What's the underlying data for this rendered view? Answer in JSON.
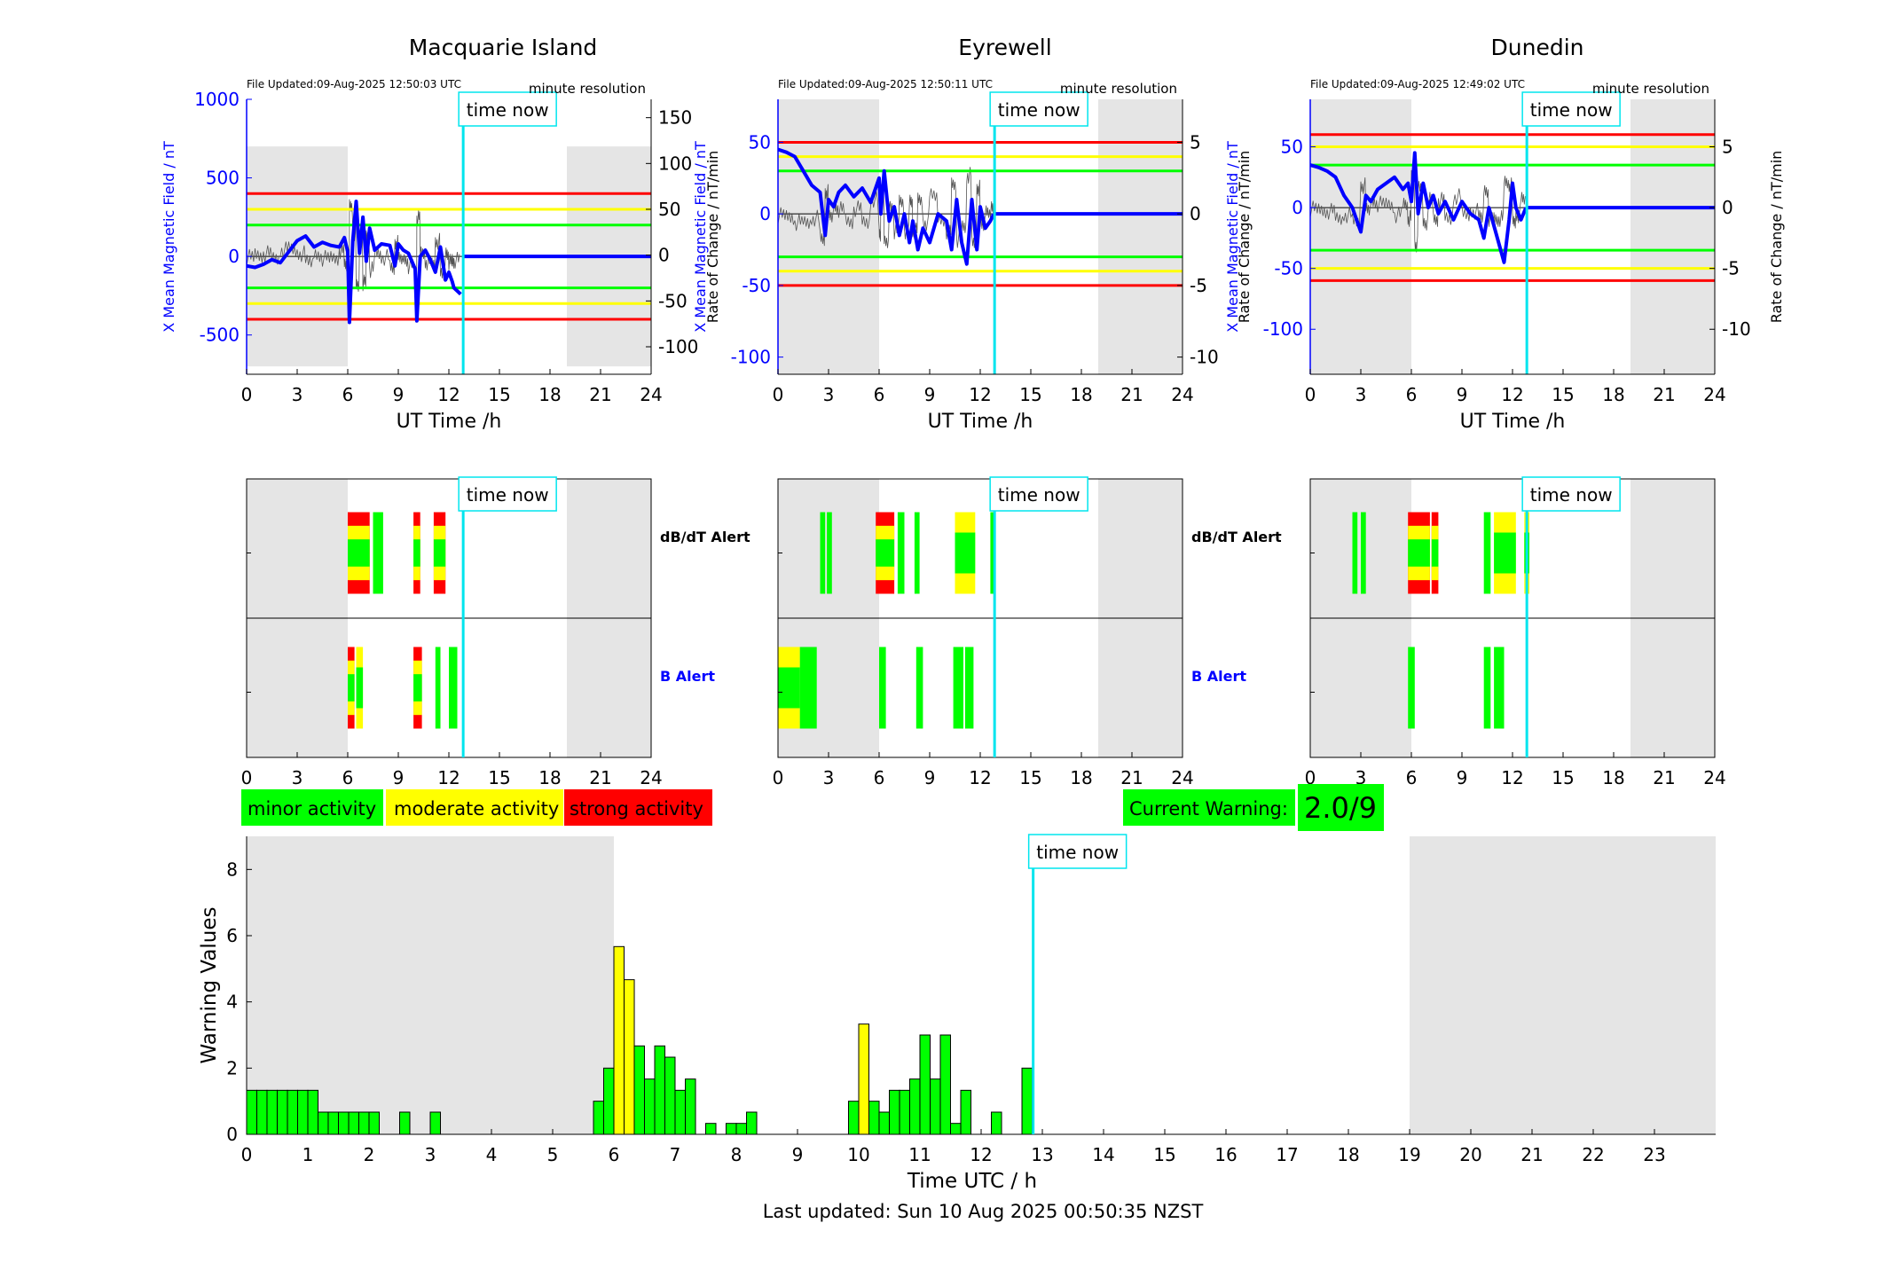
{
  "stations": [
    {
      "name": "Macquarie Island",
      "file_updated": "File Updated:09-Aug-2025 12:50:03 UTC",
      "resolution": "minute resolution",
      "left_ylabel": "X Mean Magnetic Field / nT",
      "right_ylabel": "Rate of Change / nT/min",
      "left_ylim": [
        -750,
        1000
      ],
      "right_ylim": [
        -130,
        170
      ],
      "left_ticks": [
        "-500",
        "0",
        "500",
        "1000"
      ],
      "left_tick_values": [
        -500,
        0,
        500,
        1000
      ],
      "right_ticks": [
        "-100",
        "-50",
        "0",
        "50",
        "100",
        "150"
      ],
      "right_tick_values": [
        -100,
        -50,
        0,
        50,
        100,
        150
      ],
      "thresholds": {
        "green": 200,
        "yellow": 300,
        "red": 400
      },
      "shade_band": [
        -700,
        700
      ],
      "field_series": [
        [
          0,
          -60
        ],
        [
          0.5,
          -70
        ],
        [
          1,
          -50
        ],
        [
          1.5,
          -20
        ],
        [
          2,
          -40
        ],
        [
          2.5,
          30
        ],
        [
          3,
          100
        ],
        [
          3.5,
          130
        ],
        [
          4,
          60
        ],
        [
          4.5,
          90
        ],
        [
          5,
          70
        ],
        [
          5.5,
          60
        ],
        [
          5.8,
          120
        ],
        [
          6,
          30
        ],
        [
          6.1,
          -420
        ],
        [
          6.3,
          100
        ],
        [
          6.5,
          350
        ],
        [
          6.7,
          20
        ],
        [
          6.9,
          250
        ],
        [
          7.1,
          -30
        ],
        [
          7.3,
          180
        ],
        [
          7.6,
          40
        ],
        [
          8,
          80
        ],
        [
          8.5,
          70
        ],
        [
          8.8,
          -60
        ],
        [
          9,
          80
        ],
        [
          9.3,
          40
        ],
        [
          9.6,
          20
        ],
        [
          10,
          -80
        ],
        [
          10.1,
          -410
        ],
        [
          10.3,
          0
        ],
        [
          10.6,
          40
        ],
        [
          10.9,
          -20
        ],
        [
          11.2,
          -100
        ],
        [
          11.5,
          60
        ],
        [
          11.8,
          -150
        ],
        [
          12,
          -100
        ],
        [
          12.2,
          -160
        ],
        [
          12.3,
          -200
        ],
        [
          12.7,
          -240
        ]
      ],
      "flat_from": 12.9,
      "alert_db": [
        {
          "t": 6,
          "w": 1.3,
          "s": 3
        },
        {
          "t": 7.5,
          "w": 0.6,
          "s": 1
        },
        {
          "t": 9.9,
          "w": 0.4,
          "s": 3
        },
        {
          "t": 11.1,
          "w": 0.7,
          "s": 3
        }
      ],
      "alert_b": [
        {
          "t": 6,
          "w": 0.4,
          "s": 3
        },
        {
          "t": 6.5,
          "w": 0.4,
          "s": 2
        },
        {
          "t": 9.9,
          "w": 0.5,
          "s": 3
        },
        {
          "t": 11.2,
          "w": 0.3,
          "s": 1
        },
        {
          "t": 12,
          "w": 0.5,
          "s": 1
        }
      ]
    },
    {
      "name": "Eyrewell",
      "file_updated": "File Updated:09-Aug-2025 12:50:11 UTC",
      "resolution": "minute resolution",
      "left_ylabel": "X Mean Magnetic Field / nT",
      "right_ylabel": "Rate of Change / nT/min",
      "left_ylim": [
        -112,
        80
      ],
      "right_ylim": [
        -11.2,
        8
      ],
      "left_ticks": [
        "-100",
        "-50",
        "0",
        "50"
      ],
      "left_tick_values": [
        -100,
        -50,
        0,
        50
      ],
      "right_ticks": [
        "-10",
        "-5",
        "0",
        "5"
      ],
      "right_tick_values": [
        -10,
        -5,
        0,
        5
      ],
      "thresholds": {
        "green": 30,
        "yellow": 40,
        "red": 50
      },
      "shade_band": [
        -112,
        80
      ],
      "field_series": [
        [
          0,
          45
        ],
        [
          0.5,
          43
        ],
        [
          1,
          40
        ],
        [
          1.5,
          30
        ],
        [
          2,
          20
        ],
        [
          2.5,
          15
        ],
        [
          2.8,
          -15
        ],
        [
          3,
          10
        ],
        [
          3.3,
          5
        ],
        [
          3.6,
          15
        ],
        [
          4,
          20
        ],
        [
          4.5,
          12
        ],
        [
          5,
          18
        ],
        [
          5.5,
          8
        ],
        [
          6,
          25
        ],
        [
          6.1,
          0
        ],
        [
          6.3,
          30
        ],
        [
          6.6,
          -5
        ],
        [
          6.9,
          5
        ],
        [
          7.2,
          -15
        ],
        [
          7.5,
          0
        ],
        [
          7.8,
          -20
        ],
        [
          8,
          -5
        ],
        [
          8.3,
          -25
        ],
        [
          8.6,
          -10
        ],
        [
          9,
          -20
        ],
        [
          9.5,
          0
        ],
        [
          10,
          -5
        ],
        [
          10.3,
          -25
        ],
        [
          10.6,
          10
        ],
        [
          10.9,
          -20
        ],
        [
          11.2,
          -35
        ],
        [
          11.5,
          10
        ],
        [
          11.8,
          -25
        ],
        [
          12,
          5
        ],
        [
          12.3,
          -10
        ],
        [
          12.6,
          -5
        ],
        [
          12.8,
          0
        ]
      ],
      "flat_from": 12.9,
      "alert_db": [
        {
          "t": 2.5,
          "w": 0.3,
          "s": 1
        },
        {
          "t": 2.9,
          "w": 0.3,
          "s": 1
        },
        {
          "t": 5.8,
          "w": 1.1,
          "s": 3
        },
        {
          "t": 7.1,
          "w": 0.4,
          "s": 1
        },
        {
          "t": 8.1,
          "w": 0.3,
          "s": 1
        },
        {
          "t": 10.5,
          "w": 1.2,
          "s": 2
        },
        {
          "t": 12.6,
          "w": 0.3,
          "s": 1
        }
      ],
      "alert_b": [
        {
          "t": 0,
          "w": 1.3,
          "s": 2
        },
        {
          "t": 1.3,
          "w": 1,
          "s": 1
        },
        {
          "t": 6,
          "w": 0.4,
          "s": 1
        },
        {
          "t": 8.2,
          "w": 0.4,
          "s": 1
        },
        {
          "t": 10.4,
          "w": 0.6,
          "s": 1
        },
        {
          "t": 11.1,
          "w": 0.5,
          "s": 1
        }
      ]
    },
    {
      "name": "Dunedin",
      "file_updated": "File Updated:09-Aug-2025 12:49:02 UTC",
      "resolution": "minute resolution",
      "left_ylabel": "X Mean Magnetic Field / nT",
      "right_ylabel": "Rate of Change / nT/min",
      "left_ylim": [
        -137,
        89
      ],
      "right_ylim": [
        -13.7,
        8.9
      ],
      "left_ticks": [
        "-100",
        "-50",
        "0",
        "50"
      ],
      "left_tick_values": [
        -100,
        -50,
        0,
        50
      ],
      "right_ticks": [
        "-10",
        "-5",
        "0",
        "5"
      ],
      "right_tick_values": [
        -10,
        -5,
        0,
        5
      ],
      "thresholds": {
        "green": 35,
        "yellow": 50,
        "red": 60
      },
      "shade_band": [
        -137,
        89
      ],
      "field_series": [
        [
          0,
          35
        ],
        [
          0.5,
          33
        ],
        [
          1,
          30
        ],
        [
          1.5,
          25
        ],
        [
          2,
          10
        ],
        [
          2.5,
          0
        ],
        [
          3,
          -20
        ],
        [
          3.3,
          10
        ],
        [
          3.6,
          5
        ],
        [
          4,
          15
        ],
        [
          4.5,
          20
        ],
        [
          5,
          25
        ],
        [
          5.5,
          15
        ],
        [
          5.8,
          20
        ],
        [
          6,
          5
        ],
        [
          6.2,
          45
        ],
        [
          6.4,
          -5
        ],
        [
          6.7,
          20
        ],
        [
          7,
          0
        ],
        [
          7.3,
          10
        ],
        [
          7.6,
          -5
        ],
        [
          8,
          5
        ],
        [
          8.5,
          -10
        ],
        [
          9,
          5
        ],
        [
          9.5,
          -5
        ],
        [
          10,
          -10
        ],
        [
          10.3,
          -25
        ],
        [
          10.6,
          0
        ],
        [
          10.9,
          -15
        ],
        [
          11.2,
          -30
        ],
        [
          11.5,
          -45
        ],
        [
          11.8,
          -10
        ],
        [
          12,
          20
        ],
        [
          12.2,
          0
        ],
        [
          12.5,
          -10
        ],
        [
          12.8,
          0
        ]
      ],
      "flat_from": 12.9,
      "alert_db": [
        {
          "t": 2.5,
          "w": 0.3,
          "s": 1
        },
        {
          "t": 3,
          "w": 0.3,
          "s": 1
        },
        {
          "t": 5.8,
          "w": 1.3,
          "s": 3
        },
        {
          "t": 7.2,
          "w": 0.4,
          "s": 3
        },
        {
          "t": 10.3,
          "w": 0.4,
          "s": 1
        },
        {
          "t": 10.9,
          "w": 1.3,
          "s": 2
        },
        {
          "t": 12.7,
          "w": 0.3,
          "s": 2
        }
      ],
      "alert_b": [
        {
          "t": 5.8,
          "w": 0.4,
          "s": 1
        },
        {
          "t": 10.3,
          "w": 0.4,
          "s": 1
        },
        {
          "t": 10.9,
          "w": 0.6,
          "s": 1
        }
      ]
    }
  ],
  "time_now_label": "time now",
  "time_now_hours": 12.85,
  "shade_night": [
    [
      0,
      6
    ],
    [
      19,
      24
    ]
  ],
  "shade_night_bottom": [
    [
      0,
      6
    ],
    [
      19,
      24
    ]
  ],
  "ut_xlabel": "UT Time /h",
  "ut_ticks": [
    "0",
    "3",
    "6",
    "9",
    "12",
    "15",
    "18",
    "21",
    "24"
  ],
  "alert_labels": {
    "db": "dB/dT Alert",
    "b": "B Alert"
  },
  "legend": {
    "minor": "minor activity",
    "moderate": "moderate activity",
    "strong": "strong activity"
  },
  "current_warning": {
    "label": "Current Warning:",
    "value": "2.0/9"
  },
  "colors": {
    "minor": "#00ff00",
    "moderate": "#ffff00",
    "strong": "#ff0000",
    "now": "#00e5ee",
    "field": "#0000ff",
    "shade": "#e5e5e5"
  },
  "chart_data": {
    "type": "bar",
    "ylabel": "Warning Values",
    "xlabel": "Time UTC / h",
    "ylim": [
      0,
      9
    ],
    "xlim": [
      0,
      24
    ],
    "yticks": [
      "0",
      "2",
      "4",
      "6",
      "8"
    ],
    "xticks": [
      "0",
      "1",
      "2",
      "3",
      "4",
      "5",
      "6",
      "7",
      "8",
      "9",
      "10",
      "11",
      "12",
      "13",
      "14",
      "15",
      "16",
      "17",
      "18",
      "19",
      "20",
      "21",
      "22",
      "23"
    ],
    "bar_width_h": 0.1667,
    "bars": [
      {
        "x": 0.0,
        "v": 1.33,
        "c": "minor"
      },
      {
        "x": 0.167,
        "v": 1.33,
        "c": "minor"
      },
      {
        "x": 0.333,
        "v": 1.33,
        "c": "minor"
      },
      {
        "x": 0.5,
        "v": 1.33,
        "c": "minor"
      },
      {
        "x": 0.667,
        "v": 1.33,
        "c": "minor"
      },
      {
        "x": 0.833,
        "v": 1.33,
        "c": "minor"
      },
      {
        "x": 1.0,
        "v": 1.33,
        "c": "minor"
      },
      {
        "x": 1.167,
        "v": 0.67,
        "c": "minor"
      },
      {
        "x": 1.333,
        "v": 0.67,
        "c": "minor"
      },
      {
        "x": 1.5,
        "v": 0.67,
        "c": "minor"
      },
      {
        "x": 1.667,
        "v": 0.67,
        "c": "minor"
      },
      {
        "x": 1.833,
        "v": 0.67,
        "c": "minor"
      },
      {
        "x": 2.0,
        "v": 0.67,
        "c": "minor"
      },
      {
        "x": 2.5,
        "v": 0.67,
        "c": "minor"
      },
      {
        "x": 3.0,
        "v": 0.67,
        "c": "minor"
      },
      {
        "x": 5.667,
        "v": 1.0,
        "c": "minor"
      },
      {
        "x": 5.833,
        "v": 2.0,
        "c": "minor"
      },
      {
        "x": 6.0,
        "v": 5.67,
        "c": "moderate"
      },
      {
        "x": 6.167,
        "v": 4.67,
        "c": "moderate"
      },
      {
        "x": 6.333,
        "v": 2.67,
        "c": "minor"
      },
      {
        "x": 6.5,
        "v": 1.67,
        "c": "minor"
      },
      {
        "x": 6.667,
        "v": 2.67,
        "c": "minor"
      },
      {
        "x": 6.833,
        "v": 2.33,
        "c": "minor"
      },
      {
        "x": 7.0,
        "v": 1.33,
        "c": "minor"
      },
      {
        "x": 7.167,
        "v": 1.67,
        "c": "minor"
      },
      {
        "x": 7.5,
        "v": 0.33,
        "c": "minor"
      },
      {
        "x": 7.833,
        "v": 0.33,
        "c": "minor"
      },
      {
        "x": 8.0,
        "v": 0.33,
        "c": "minor"
      },
      {
        "x": 8.167,
        "v": 0.67,
        "c": "minor"
      },
      {
        "x": 9.833,
        "v": 1.0,
        "c": "minor"
      },
      {
        "x": 10.0,
        "v": 3.33,
        "c": "moderate"
      },
      {
        "x": 10.167,
        "v": 1.0,
        "c": "minor"
      },
      {
        "x": 10.333,
        "v": 0.67,
        "c": "minor"
      },
      {
        "x": 10.5,
        "v": 1.33,
        "c": "minor"
      },
      {
        "x": 10.667,
        "v": 1.33,
        "c": "minor"
      },
      {
        "x": 10.833,
        "v": 1.67,
        "c": "minor"
      },
      {
        "x": 11.0,
        "v": 3.0,
        "c": "minor"
      },
      {
        "x": 11.167,
        "v": 1.67,
        "c": "minor"
      },
      {
        "x": 11.333,
        "v": 3.0,
        "c": "minor"
      },
      {
        "x": 11.5,
        "v": 0.33,
        "c": "minor"
      },
      {
        "x": 11.667,
        "v": 1.33,
        "c": "minor"
      },
      {
        "x": 12.167,
        "v": 0.67,
        "c": "minor"
      },
      {
        "x": 12.667,
        "v": 2.0,
        "c": "minor"
      }
    ]
  },
  "footer": "Last updated: Sun 10 Aug 2025 00:50:35 NZST"
}
